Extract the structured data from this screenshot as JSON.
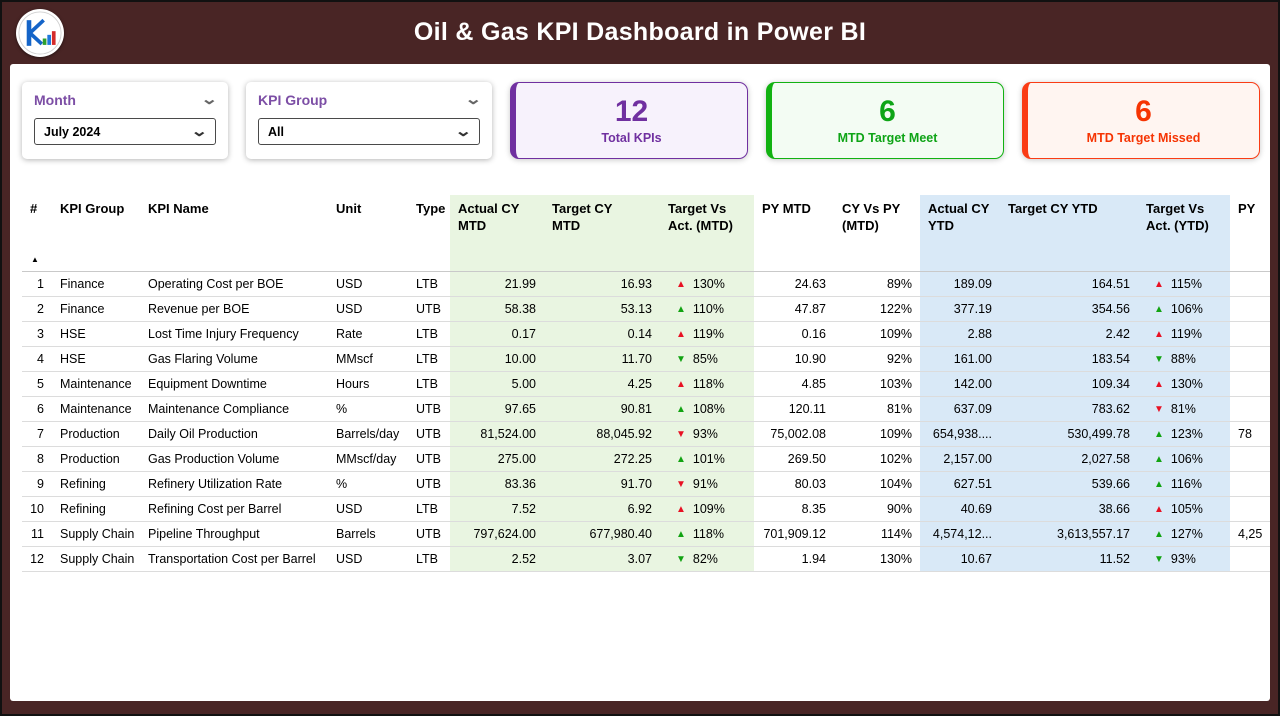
{
  "header": {
    "title": "Oil & Gas KPI Dashboard in Power BI"
  },
  "icons": {
    "chevron_down": "⌄",
    "sort_asc": "▲",
    "tri_up": "▲",
    "tri_down": "▼"
  },
  "slicers": {
    "month": {
      "label": "Month",
      "value": "July 2024"
    },
    "kpi_group": {
      "label": "KPI Group",
      "value": "All"
    }
  },
  "cards": {
    "total": {
      "value": "12",
      "label": "Total KPIs",
      "accent": "#7030a0"
    },
    "meet": {
      "value": "6",
      "label": "MTD Target Meet",
      "accent": "#12b212"
    },
    "missed": {
      "value": "6",
      "label": "MTD Target Missed",
      "accent": "#fa3c15"
    }
  },
  "table": {
    "columns": [
      "#",
      "KPI Group",
      "KPI Name",
      "Unit",
      "Type",
      "Actual CY MTD",
      "Target CY MTD",
      "Target Vs Act. (MTD)",
      "PY MTD",
      "CY Vs PY (MTD)",
      "Actual CY YTD",
      "Target CY YTD",
      "Target Vs Act. (YTD)",
      "PY"
    ],
    "rows": [
      {
        "num": "1",
        "group": "Finance",
        "name": "Operating Cost per BOE",
        "unit": "USD",
        "type": "LTB",
        "actual_mtd": "21.99",
        "target_mtd": "16.93",
        "tva_mtd": {
          "dir": "up",
          "tone": "bad",
          "pct": "130%"
        },
        "py_mtd": "24.63",
        "cy_vs_py": "89%",
        "actual_ytd": "189.09",
        "target_ytd": "164.51",
        "tva_ytd": {
          "dir": "up",
          "tone": "bad",
          "pct": "115%"
        },
        "py_ytd": ""
      },
      {
        "num": "2",
        "group": "Finance",
        "name": "Revenue per BOE",
        "unit": "USD",
        "type": "UTB",
        "actual_mtd": "58.38",
        "target_mtd": "53.13",
        "tva_mtd": {
          "dir": "up",
          "tone": "good",
          "pct": "110%"
        },
        "py_mtd": "47.87",
        "cy_vs_py": "122%",
        "actual_ytd": "377.19",
        "target_ytd": "354.56",
        "tva_ytd": {
          "dir": "up",
          "tone": "good",
          "pct": "106%"
        },
        "py_ytd": ""
      },
      {
        "num": "3",
        "group": "HSE",
        "name": "Lost Time Injury Frequency",
        "unit": "Rate",
        "type": "LTB",
        "actual_mtd": "0.17",
        "target_mtd": "0.14",
        "tva_mtd": {
          "dir": "up",
          "tone": "bad",
          "pct": "119%"
        },
        "py_mtd": "0.16",
        "cy_vs_py": "109%",
        "actual_ytd": "2.88",
        "target_ytd": "2.42",
        "tva_ytd": {
          "dir": "up",
          "tone": "bad",
          "pct": "119%"
        },
        "py_ytd": ""
      },
      {
        "num": "4",
        "group": "HSE",
        "name": "Gas Flaring Volume",
        "unit": "MMscf",
        "type": "LTB",
        "actual_mtd": "10.00",
        "target_mtd": "11.70",
        "tva_mtd": {
          "dir": "down",
          "tone": "good",
          "pct": "85%"
        },
        "py_mtd": "10.90",
        "cy_vs_py": "92%",
        "actual_ytd": "161.00",
        "target_ytd": "183.54",
        "tva_ytd": {
          "dir": "down",
          "tone": "good",
          "pct": "88%"
        },
        "py_ytd": ""
      },
      {
        "num": "5",
        "group": "Maintenance",
        "name": "Equipment Downtime",
        "unit": "Hours",
        "type": "LTB",
        "actual_mtd": "5.00",
        "target_mtd": "4.25",
        "tva_mtd": {
          "dir": "up",
          "tone": "bad",
          "pct": "118%"
        },
        "py_mtd": "4.85",
        "cy_vs_py": "103%",
        "actual_ytd": "142.00",
        "target_ytd": "109.34",
        "tva_ytd": {
          "dir": "up",
          "tone": "bad",
          "pct": "130%"
        },
        "py_ytd": ""
      },
      {
        "num": "6",
        "group": "Maintenance",
        "name": "Maintenance Compliance",
        "unit": "%",
        "type": "UTB",
        "actual_mtd": "97.65",
        "target_mtd": "90.81",
        "tva_mtd": {
          "dir": "up",
          "tone": "good",
          "pct": "108%"
        },
        "py_mtd": "120.11",
        "cy_vs_py": "81%",
        "actual_ytd": "637.09",
        "target_ytd": "783.62",
        "tva_ytd": {
          "dir": "down",
          "tone": "bad",
          "pct": "81%"
        },
        "py_ytd": ""
      },
      {
        "num": "7",
        "group": "Production",
        "name": "Daily Oil Production",
        "unit": "Barrels/day",
        "type": "UTB",
        "actual_mtd": "81,524.00",
        "target_mtd": "88,045.92",
        "tva_mtd": {
          "dir": "down",
          "tone": "bad",
          "pct": "93%"
        },
        "py_mtd": "75,002.08",
        "cy_vs_py": "109%",
        "actual_ytd": "654,938....",
        "target_ytd": "530,499.78",
        "tva_ytd": {
          "dir": "up",
          "tone": "good",
          "pct": "123%"
        },
        "py_ytd": "78"
      },
      {
        "num": "8",
        "group": "Production",
        "name": "Gas Production Volume",
        "unit": "MMscf/day",
        "type": "UTB",
        "actual_mtd": "275.00",
        "target_mtd": "272.25",
        "tva_mtd": {
          "dir": "up",
          "tone": "good",
          "pct": "101%"
        },
        "py_mtd": "269.50",
        "cy_vs_py": "102%",
        "actual_ytd": "2,157.00",
        "target_ytd": "2,027.58",
        "tva_ytd": {
          "dir": "up",
          "tone": "good",
          "pct": "106%"
        },
        "py_ytd": ""
      },
      {
        "num": "9",
        "group": "Refining",
        "name": "Refinery Utilization Rate",
        "unit": "%",
        "type": "UTB",
        "actual_mtd": "83.36",
        "target_mtd": "91.70",
        "tva_mtd": {
          "dir": "down",
          "tone": "bad",
          "pct": "91%"
        },
        "py_mtd": "80.03",
        "cy_vs_py": "104%",
        "actual_ytd": "627.51",
        "target_ytd": "539.66",
        "tva_ytd": {
          "dir": "up",
          "tone": "good",
          "pct": "116%"
        },
        "py_ytd": ""
      },
      {
        "num": "10",
        "group": "Refining",
        "name": "Refining Cost per Barrel",
        "unit": "USD",
        "type": "LTB",
        "actual_mtd": "7.52",
        "target_mtd": "6.92",
        "tva_mtd": {
          "dir": "up",
          "tone": "bad",
          "pct": "109%"
        },
        "py_mtd": "8.35",
        "cy_vs_py": "90%",
        "actual_ytd": "40.69",
        "target_ytd": "38.66",
        "tva_ytd": {
          "dir": "up",
          "tone": "bad",
          "pct": "105%"
        },
        "py_ytd": ""
      },
      {
        "num": "11",
        "group": "Supply Chain",
        "name": "Pipeline Throughput",
        "unit": "Barrels",
        "type": "UTB",
        "actual_mtd": "797,624.00",
        "target_mtd": "677,980.40",
        "tva_mtd": {
          "dir": "up",
          "tone": "good",
          "pct": "118%"
        },
        "py_mtd": "701,909.12",
        "cy_vs_py": "114%",
        "actual_ytd": "4,574,12...",
        "target_ytd": "3,613,557.17",
        "tva_ytd": {
          "dir": "up",
          "tone": "good",
          "pct": "127%"
        },
        "py_ytd": "4,25"
      },
      {
        "num": "12",
        "group": "Supply Chain",
        "name": "Transportation Cost per Barrel",
        "unit": "USD",
        "type": "LTB",
        "actual_mtd": "2.52",
        "target_mtd": "3.07",
        "tva_mtd": {
          "dir": "down",
          "tone": "good",
          "pct": "82%"
        },
        "py_mtd": "1.94",
        "cy_vs_py": "130%",
        "actual_ytd": "10.67",
        "target_ytd": "11.52",
        "tva_ytd": {
          "dir": "down",
          "tone": "good",
          "pct": "93%"
        },
        "py_ytd": ""
      }
    ]
  }
}
